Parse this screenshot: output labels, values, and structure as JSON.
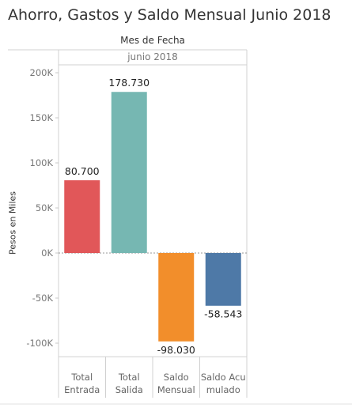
{
  "chart_data": {
    "type": "bar",
    "title": "Ahorro, Gastos y Saldo Mensual Junio 2018",
    "column_header": "Mes de Fecha",
    "column_value": "junio 2018",
    "ylabel": "Pesos en Miles",
    "xlabel": "",
    "ylim": [
      -115000,
      218000
    ],
    "yticks": [
      -100000,
      -50000,
      0,
      50000,
      100000,
      150000,
      200000
    ],
    "ytick_labels": [
      "-100K",
      "-50K",
      "0K",
      "50K",
      "100K",
      "150K",
      "200K"
    ],
    "categories": [
      [
        "Total",
        "Entrada"
      ],
      [
        "Total",
        "Salida"
      ],
      [
        "Saldo",
        "Mensual"
      ],
      [
        "Saldo Acu",
        "mulado"
      ]
    ],
    "values": [
      80700,
      178730,
      -98030,
      -58543
    ],
    "value_labels": [
      "80.700",
      "178.730",
      "-98.030",
      "-58.543"
    ],
    "colors": [
      "#e15759",
      "#76b7b2",
      "#f28e2b",
      "#4e79a7"
    ],
    "grid": false
  }
}
